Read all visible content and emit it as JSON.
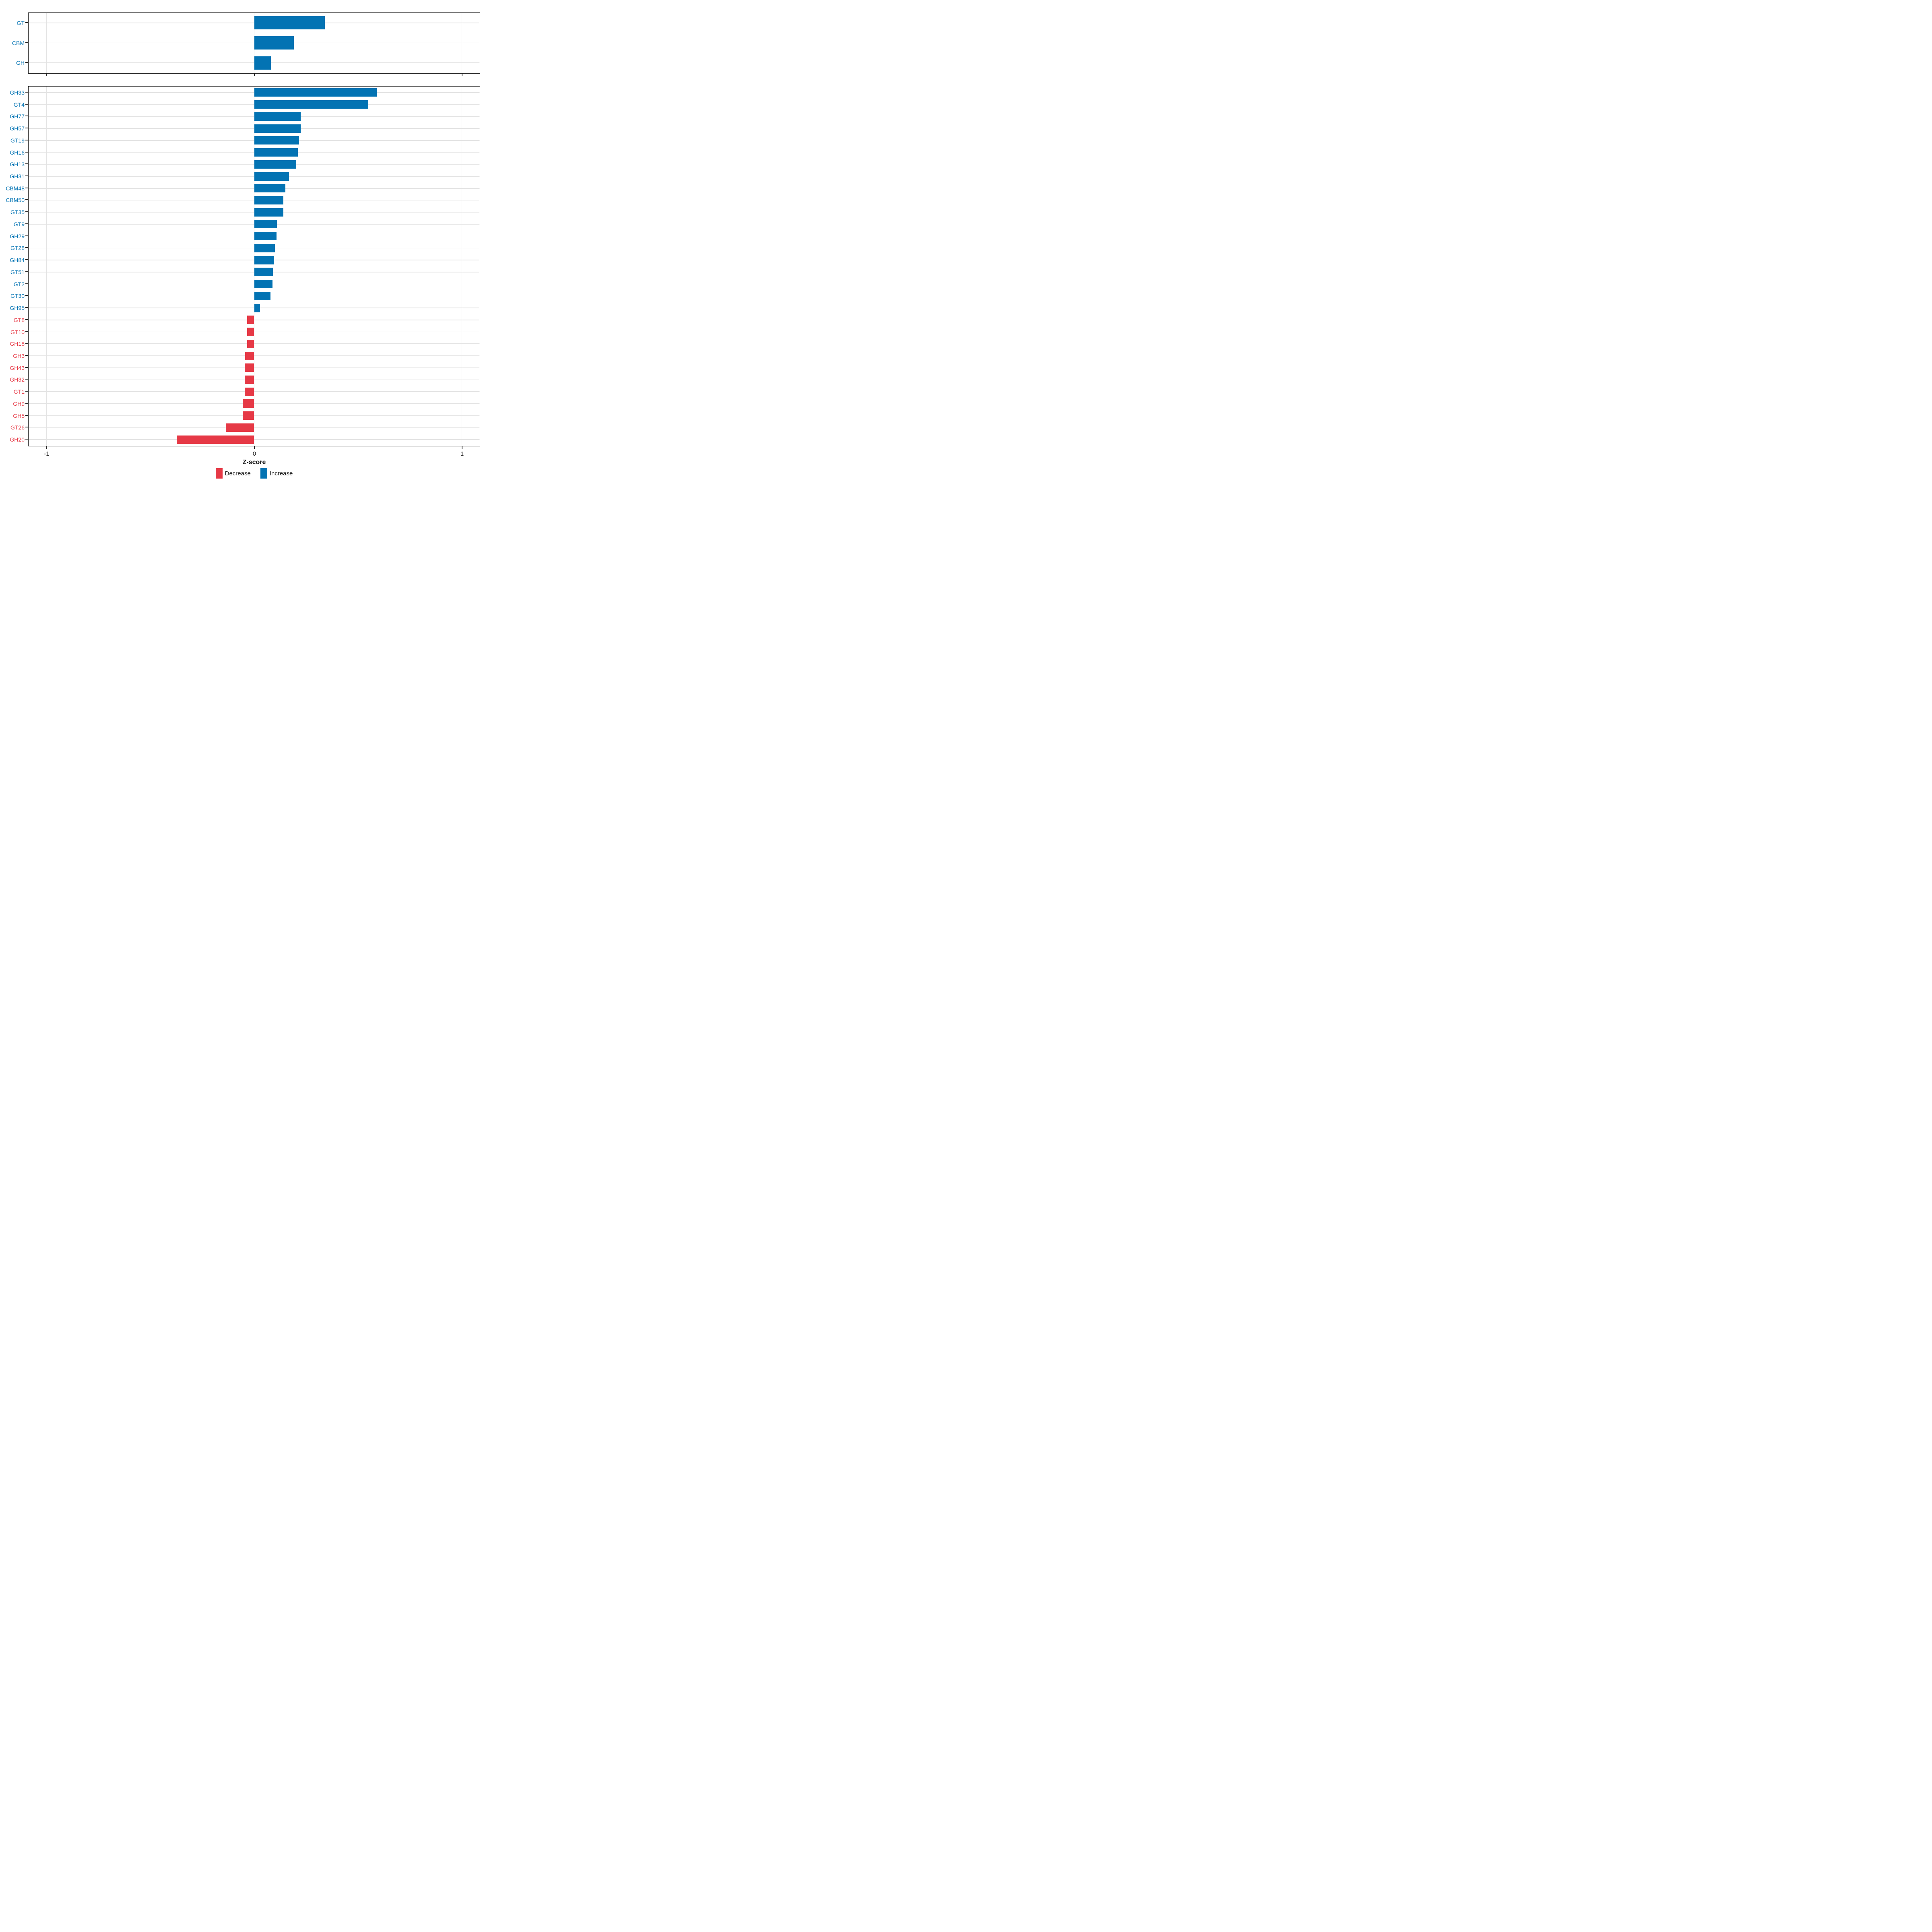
{
  "chart_data": {
    "type": "bar",
    "orientation": "horizontal",
    "title": "",
    "xlabel": "Z-score",
    "ylabel": "",
    "xlim": [
      -1.09,
      1.09
    ],
    "x_ticks": [
      -1,
      0,
      1
    ],
    "x_tick_labels": [
      "-1",
      "0",
      "1"
    ],
    "grid": "light gray horizontal line per row; vertical lines at -1, 0, 1",
    "legend_position": "bottom",
    "colors": {
      "increase": "#0373B3",
      "decrease": "#E63946"
    },
    "legend": {
      "entries": [
        {
          "label": "Decrease",
          "color": "#E63946"
        },
        {
          "label": "Increase",
          "color": "#0373B3"
        }
      ]
    },
    "panels": [
      {
        "name": "enzyme-class-summary",
        "rows": [
          {
            "label": "GT",
            "value": 0.34,
            "direction": "Increase"
          },
          {
            "label": "CBM",
            "value": 0.19,
            "direction": "Increase"
          },
          {
            "label": "GH",
            "value": 0.08,
            "direction": "Increase"
          }
        ]
      },
      {
        "name": "enzyme-families",
        "rows": [
          {
            "label": "GH33",
            "value": 0.59,
            "direction": "Increase"
          },
          {
            "label": "GT4",
            "value": 0.55,
            "direction": "Increase"
          },
          {
            "label": "GH77",
            "value": 0.223,
            "direction": "Increase"
          },
          {
            "label": "GH57",
            "value": 0.223,
            "direction": "Increase"
          },
          {
            "label": "GT19",
            "value": 0.216,
            "direction": "Increase"
          },
          {
            "label": "GH16",
            "value": 0.21,
            "direction": "Increase"
          },
          {
            "label": "GH13",
            "value": 0.202,
            "direction": "Increase"
          },
          {
            "label": "GH31",
            "value": 0.168,
            "direction": "Increase"
          },
          {
            "label": "CBM48",
            "value": 0.151,
            "direction": "Increase"
          },
          {
            "label": "CBM50",
            "value": 0.141,
            "direction": "Increase"
          },
          {
            "label": "GT35",
            "value": 0.141,
            "direction": "Increase"
          },
          {
            "label": "GT9",
            "value": 0.109,
            "direction": "Increase"
          },
          {
            "label": "GH29",
            "value": 0.108,
            "direction": "Increase"
          },
          {
            "label": "GT28",
            "value": 0.1,
            "direction": "Increase"
          },
          {
            "label": "GH84",
            "value": 0.096,
            "direction": "Increase"
          },
          {
            "label": "GT51",
            "value": 0.091,
            "direction": "Increase"
          },
          {
            "label": "GT2",
            "value": 0.089,
            "direction": "Increase"
          },
          {
            "label": "GT30",
            "value": 0.079,
            "direction": "Increase"
          },
          {
            "label": "GH95",
            "value": 0.028,
            "direction": "Increase"
          },
          {
            "label": "GT8",
            "value": -0.033,
            "direction": "Decrease"
          },
          {
            "label": "GT10",
            "value": -0.033,
            "direction": "Decrease"
          },
          {
            "label": "GH18",
            "value": -0.033,
            "direction": "Decrease"
          },
          {
            "label": "GH3",
            "value": -0.043,
            "direction": "Decrease"
          },
          {
            "label": "GH43",
            "value": -0.045,
            "direction": "Decrease"
          },
          {
            "label": "GH32",
            "value": -0.046,
            "direction": "Decrease"
          },
          {
            "label": "GT1",
            "value": -0.046,
            "direction": "Decrease"
          },
          {
            "label": "GH9",
            "value": -0.056,
            "direction": "Decrease"
          },
          {
            "label": "GH5",
            "value": -0.056,
            "direction": "Decrease"
          },
          {
            "label": "GT26",
            "value": -0.136,
            "direction": "Decrease"
          },
          {
            "label": "GH20",
            "value": -0.373,
            "direction": "Decrease"
          }
        ]
      }
    ]
  }
}
